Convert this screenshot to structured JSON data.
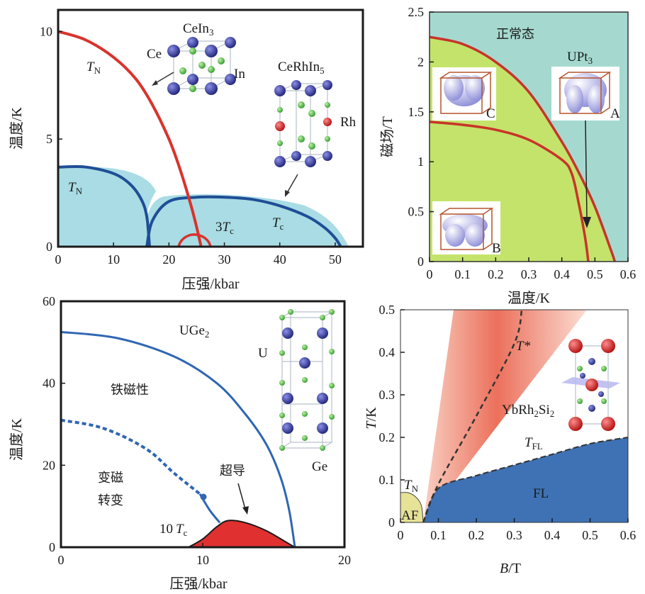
{
  "chart_data": [
    {
      "id": "cein3",
      "type": "line",
      "compound": "CeIn",
      "compound_sub": "3",
      "compound2": "CeRhIn",
      "compound2_sub": "5",
      "xlabel": "压强/kbar",
      "ylabel": "温度/K",
      "xlim": [
        0,
        55
      ],
      "ylim": [
        0,
        11
      ],
      "xticks": [
        "0",
        "10",
        "20",
        "30",
        "40",
        "50"
      ],
      "yticks": [
        "0",
        "5",
        "10"
      ],
      "labels": {
        "tn_main": "T",
        "tn_main_sub": "N",
        "tn_inner": "T",
        "tn_inner_sub": "N",
        "tc_factor": "3",
        "tc": "T",
        "tc_sub": "c",
        "tc2": "T",
        "tc2_sub": "c",
        "ce": "Ce",
        "in": "In",
        "rh": "Rh"
      },
      "series": [
        {
          "name": "T_N (CeIn3)",
          "x": [
            0,
            5,
            10,
            14,
            17,
            20,
            22,
            24,
            25,
            25.8
          ],
          "y": [
            10,
            9.6,
            8.8,
            7.8,
            6.6,
            5.0,
            3.6,
            1.9,
            0.9,
            0
          ]
        },
        {
          "name": "T_N (CeRhIn5)",
          "x": [
            0,
            5,
            10,
            13,
            15,
            16,
            16.5
          ],
          "y": [
            3.7,
            3.7,
            3.4,
            2.9,
            2.2,
            1.4,
            0
          ]
        },
        {
          "name": "T_c (CeRhIn5)",
          "x": [
            16,
            17,
            20,
            25,
            30,
            35,
            40,
            45,
            48,
            50,
            51
          ],
          "y": [
            0,
            1.2,
            2.1,
            2.3,
            2.3,
            2.2,
            1.9,
            1.4,
            0.9,
            0.4,
            0
          ]
        },
        {
          "name": "3T_c (CeIn3)",
          "x": [
            22,
            23,
            25,
            27,
            28
          ],
          "y": [
            0,
            0.3,
            0.5,
            0.3,
            0
          ]
        }
      ]
    },
    {
      "id": "upt3",
      "type": "line",
      "compound": "UPt",
      "compound_sub": "3",
      "xlabel": "温度/K",
      "ylabel": "磁场/T",
      "xlim": [
        0,
        0.6
      ],
      "ylim": [
        0,
        2.5
      ],
      "xticks": [
        "0",
        "0.1",
        "0.2",
        "0.3",
        "0.4",
        "0.5",
        "0.6"
      ],
      "yticks": [
        "0",
        "0.5",
        "1",
        "1.5",
        "2",
        "2.5"
      ],
      "labels": {
        "normal": "正常态",
        "a": "A",
        "b": "B",
        "c": "C"
      },
      "series": [
        {
          "name": "Hc2 upper",
          "x": [
            0,
            0.1,
            0.2,
            0.3,
            0.4,
            0.45,
            0.5,
            0.55,
            0.56
          ],
          "y": [
            2.25,
            2.18,
            2.0,
            1.7,
            1.2,
            0.9,
            0.55,
            0.1,
            0
          ]
        },
        {
          "name": "A-B/C boundary",
          "x": [
            0,
            0.1,
            0.2,
            0.3,
            0.4,
            0.43,
            0.45,
            0.47,
            0.48
          ],
          "y": [
            1.4,
            1.37,
            1.32,
            1.22,
            1.02,
            0.88,
            0.6,
            0.25,
            0
          ]
        }
      ]
    },
    {
      "id": "uge2",
      "type": "line",
      "compound": "UGe",
      "compound_sub": "2",
      "xlabel": "压强/kbar",
      "ylabel": "温度/K",
      "xlim": [
        0,
        20
      ],
      "ylim": [
        0,
        60
      ],
      "xticks": [
        "0",
        "10",
        "20"
      ],
      "yticks": [
        "0",
        "20",
        "40",
        "60"
      ],
      "labels": {
        "ferro": "铁磁性",
        "meta1": "变磁",
        "meta2": "转变",
        "super": "超导",
        "tc_factor": "10",
        "tc": "T",
        "tc_sub": "c",
        "u": "U",
        "ge": "Ge"
      },
      "series": [
        {
          "name": "Curie T",
          "x": [
            0,
            4,
            8,
            11,
            13,
            14.5,
            15.5,
            16.1,
            16.5
          ],
          "y": [
            52.5,
            51,
            46.5,
            40,
            32.5,
            25,
            17,
            9,
            0
          ]
        },
        {
          "name": "metamagnetic (dashed)",
          "x": [
            0,
            3,
            6,
            8,
            9.8
          ],
          "y": [
            31,
            29,
            24,
            18,
            13
          ]
        },
        {
          "name": "metamagnetic (solid)",
          "x": [
            9.8,
            10.5,
            11.2
          ],
          "y": [
            13,
            9,
            6
          ]
        },
        {
          "name": "10 T_c",
          "x": [
            9,
            10,
            11,
            11.8,
            13,
            14.5,
            16,
            16.5
          ],
          "y": [
            0,
            2,
            5,
            6.5,
            6.0,
            4.0,
            1.0,
            0
          ]
        }
      ]
    },
    {
      "id": "ybrh2si2",
      "type": "area",
      "compound": "YbRh",
      "compound_sub": "2",
      "compound_mid": "Si",
      "compound_sub2": "2",
      "xlabel": "B/T",
      "xlabel_unit": "/T",
      "xlabel_var": "B",
      "ylabel_var": "T",
      "ylabel_unit": "/K",
      "xlim": [
        0,
        0.6
      ],
      "ylim": [
        0,
        0.5
      ],
      "xticks": [
        "0",
        "0.1",
        "0.2",
        "0.3",
        "0.4",
        "0.5",
        "0.6"
      ],
      "yticks": [
        "0",
        "0.1",
        "0.2",
        "0.3",
        "0.4",
        "0.5"
      ],
      "labels": {
        "tstar": "T*",
        "tfl": "T",
        "tfl_sub": "FL",
        "tn": "T",
        "tn_sub": "N",
        "af": "AF",
        "fl": "FL"
      },
      "series": [
        {
          "name": "T_FL",
          "x": [
            0.06,
            0.1,
            0.2,
            0.3,
            0.4,
            0.5,
            0.6
          ],
          "y": [
            0,
            0.08,
            0.11,
            0.135,
            0.16,
            0.185,
            0.2
          ]
        },
        {
          "name": "T*",
          "x": [
            0.06,
            0.1,
            0.2,
            0.3,
            0.32
          ],
          "y": [
            0,
            0.09,
            0.25,
            0.42,
            0.5
          ]
        },
        {
          "name": "T_N",
          "x": [
            0,
            0.02,
            0.04,
            0.055,
            0.06
          ],
          "y": [
            0.07,
            0.07,
            0.06,
            0.04,
            0
          ]
        }
      ]
    }
  ]
}
